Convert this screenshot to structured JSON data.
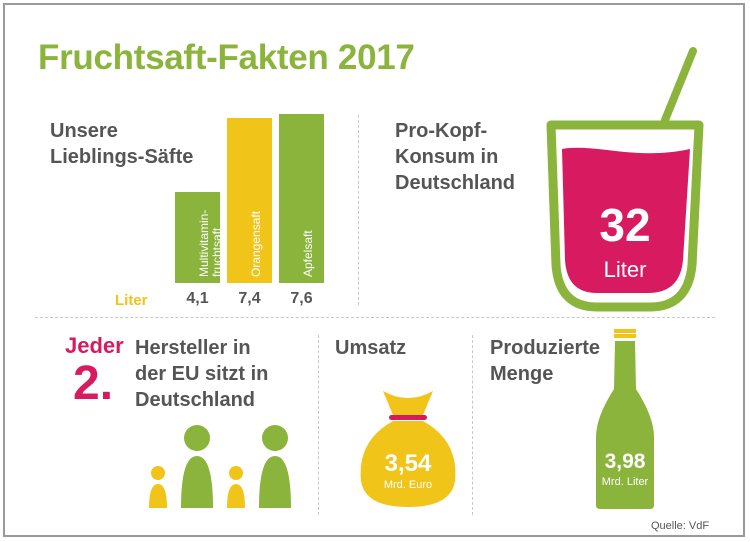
{
  "title": "Fruchtsaft-Fakten 2017",
  "favorites": {
    "heading": "Unsere\nLieblings-Säfte",
    "unit": "Liter"
  },
  "chart_data": {
    "type": "bar",
    "categories": [
      "Multivitamin-\nfruchtsaft",
      "Orangensaft",
      "Apfelsaft"
    ],
    "values": [
      4.1,
      7.4,
      7.6
    ],
    "value_labels": [
      "4,1",
      "7,4",
      "7,6"
    ],
    "colors": [
      "#8ab43c",
      "#f0c419",
      "#8ab43c"
    ],
    "unit": "Liter",
    "title": "Unsere Lieblings-Säfte"
  },
  "consumption": {
    "heading": "Pro-Kopf-\nKonsum in\nDeutschland",
    "value": "32",
    "unit": "Liter"
  },
  "producer": {
    "jeder": "Jeder",
    "number": "2.",
    "text": "Hersteller in\nder EU sitzt in\nDeutschland"
  },
  "revenue": {
    "heading": "Umsatz",
    "value": "3,54",
    "unit": "Mrd. Euro"
  },
  "production": {
    "heading": "Produzierte\nMenge",
    "value": "3,98",
    "unit": "Mrd. Liter"
  },
  "source": "Quelle:  VdF",
  "colors": {
    "green": "#8ab43c",
    "yellow": "#f0c419",
    "magenta": "#d81b60",
    "text": "#555555"
  }
}
